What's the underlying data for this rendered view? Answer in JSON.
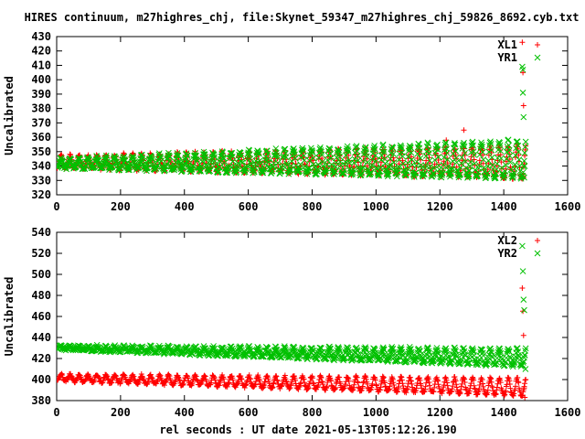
{
  "page": {
    "title": "HIRES continuum, m27highres_chj, file:Skynet_59347_m27highres_chj_59826_8692.cyb.txt",
    "xlabel": "rel seconds : UT date 2021-05-13T05:12:26.190"
  },
  "colors": {
    "red": "#ff0000",
    "green": "#00c000"
  },
  "chart_data": [
    {
      "type": "scatter",
      "title": "",
      "xlabel": "",
      "ylabel": "Uncalibrated",
      "xlim": [
        0,
        1600
      ],
      "ylim": [
        320,
        430
      ],
      "xticks": [
        "0",
        "200",
        "400",
        "600",
        "800",
        "1000",
        "1200",
        "1400",
        "1600"
      ],
      "yticks": [
        "320",
        "330",
        "340",
        "350",
        "360",
        "370",
        "380",
        "390",
        "400",
        "410",
        "420",
        "430"
      ],
      "legend": "top-right",
      "series": [
        {
          "name": "XL1",
          "marker": "plus",
          "color": "#ff0000",
          "oscillation": {
            "t_start": 0,
            "t_end": 1470,
            "period": 28,
            "base_start": 339,
            "base_end": 332,
            "amp_start": 8,
            "amp_end": 22
          },
          "highlights": [
            [
              1458,
              426
            ],
            [
              1460,
              405
            ],
            [
              1462,
              382
            ],
            [
              1462,
              332
            ],
            [
              1275,
              365
            ],
            [
              1220,
              358
            ]
          ]
        },
        {
          "name": "YR1",
          "marker": "x",
          "color": "#00c000",
          "oscillation": {
            "t_start": 0,
            "t_end": 1470,
            "period": 28,
            "base_start": 339,
            "base_end": 332,
            "amp_start": 6,
            "amp_end": 26
          },
          "highlights": [
            [
              1458,
              409
            ],
            [
              1460,
              407
            ],
            [
              1460,
              391
            ],
            [
              1462,
              374
            ],
            [
              1464,
              332
            ],
            [
              1466,
              340
            ]
          ]
        }
      ]
    },
    {
      "type": "scatter",
      "title": "",
      "xlabel": "rel seconds : UT date 2021-05-13T05:12:26.190",
      "ylabel": "Uncalibrated",
      "xlim": [
        0,
        1600
      ],
      "ylim": [
        380,
        540
      ],
      "xticks": [
        "0",
        "200",
        "400",
        "600",
        "800",
        "1000",
        "1200",
        "1400",
        "1600"
      ],
      "yticks": [
        "380",
        "400",
        "420",
        "440",
        "460",
        "480",
        "500",
        "520",
        "540"
      ],
      "legend": "top-right",
      "series": [
        {
          "name": "XL2",
          "marker": "plus",
          "color": "#ff0000",
          "oscillation": {
            "t_start": 0,
            "t_end": 1470,
            "period": 28,
            "base_start": 399,
            "base_end": 385,
            "amp_start": 6,
            "amp_end": 16
          },
          "highlights": [
            [
              1458,
              487
            ],
            [
              1460,
              465
            ],
            [
              1462,
              442
            ],
            [
              1464,
              392
            ],
            [
              1466,
              383
            ]
          ]
        },
        {
          "name": "YR2",
          "marker": "x",
          "color": "#00c000",
          "oscillation": {
            "t_start": 0,
            "t_end": 1470,
            "period": 28,
            "base_start": 429,
            "base_end": 413,
            "amp_start": 3,
            "amp_end": 16
          },
          "highlights": [
            [
              1458,
              527
            ],
            [
              1460,
              503
            ],
            [
              1462,
              476
            ],
            [
              1464,
              466
            ],
            [
              1466,
              423
            ],
            [
              1468,
              410
            ]
          ]
        }
      ]
    }
  ]
}
